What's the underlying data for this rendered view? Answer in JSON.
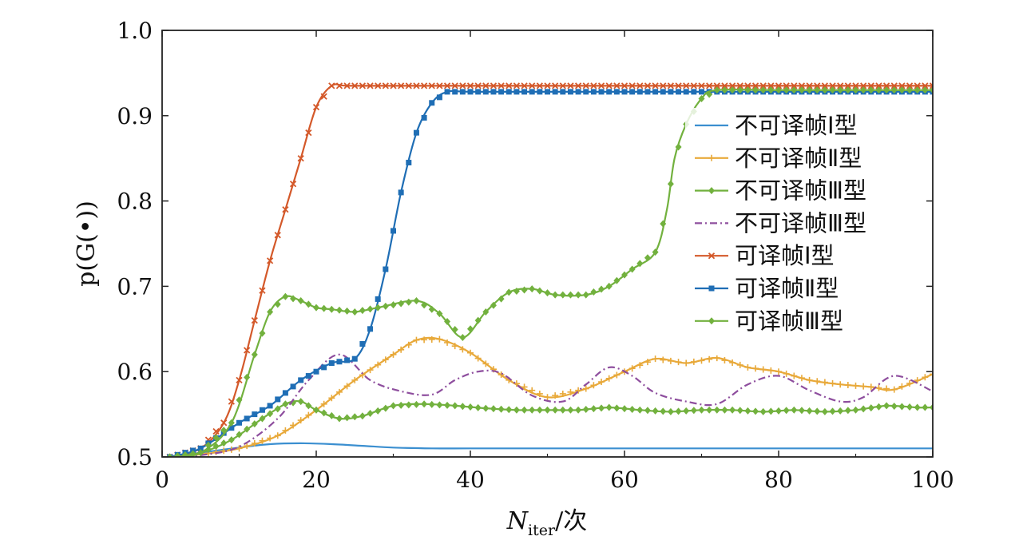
{
  "chart_data": {
    "type": "line",
    "xlabel_main": "N",
    "xlabel_sub": "iter",
    "xlabel_suffix": "/次",
    "ylabel": "p(G(•))",
    "xlim": [
      0,
      100
    ],
    "ylim": [
      0.5,
      1.0
    ],
    "xticks": [
      0,
      20,
      40,
      60,
      80,
      100
    ],
    "yticks": [
      0.5,
      0.6,
      0.7,
      0.8,
      0.9,
      1.0
    ],
    "ytick_labels": [
      "0.5",
      "0.6",
      "0.7",
      "0.8",
      "0.9",
      "1.0"
    ],
    "grid": false,
    "legend_position": "right",
    "series": [
      {
        "name": "不可译帧Ⅰ型",
        "color": "#3b8fd0",
        "marker": "none",
        "dash": "solid",
        "x": [
          1,
          5,
          10,
          14,
          18,
          22,
          26,
          30,
          35,
          40,
          50,
          60,
          70,
          80,
          90,
          100
        ],
        "y": [
          0.5,
          0.505,
          0.511,
          0.515,
          0.516,
          0.515,
          0.513,
          0.511,
          0.51,
          0.51,
          0.51,
          0.51,
          0.51,
          0.51,
          0.51,
          0.51
        ]
      },
      {
        "name": "不可译帧Ⅱ型",
        "color": "#e8a93a",
        "marker": "plus",
        "dash": "solid",
        "x": [
          1,
          5,
          10,
          15,
          20,
          25,
          30,
          33,
          36,
          40,
          45,
          50,
          55,
          60,
          64,
          68,
          72,
          76,
          80,
          84,
          88,
          92,
          95,
          100
        ],
        "y": [
          0.5,
          0.503,
          0.51,
          0.525,
          0.555,
          0.59,
          0.62,
          0.637,
          0.638,
          0.622,
          0.59,
          0.57,
          0.58,
          0.6,
          0.615,
          0.61,
          0.616,
          0.605,
          0.6,
          0.59,
          0.585,
          0.582,
          0.579,
          0.597
        ]
      },
      {
        "name": "不可译帧Ⅲ型",
        "color": "#72b13e",
        "marker": "diamond",
        "dash": "solid",
        "x": [
          1,
          5,
          9,
          13,
          16,
          18,
          20,
          23,
          26,
          30,
          34,
          38,
          42,
          46,
          50,
          54,
          58,
          62,
          66,
          70,
          74,
          78,
          82,
          86,
          90,
          94,
          98,
          100
        ],
        "y": [
          0.5,
          0.505,
          0.52,
          0.545,
          0.562,
          0.565,
          0.555,
          0.545,
          0.548,
          0.56,
          0.562,
          0.56,
          0.557,
          0.555,
          0.555,
          0.555,
          0.558,
          0.555,
          0.553,
          0.555,
          0.555,
          0.553,
          0.555,
          0.553,
          0.555,
          0.56,
          0.558,
          0.558
        ]
      },
      {
        "name": "不可译帧Ⅲ型",
        "color": "#8e4e9e",
        "marker": "none",
        "dash": "dashdot",
        "x": [
          1,
          5,
          10,
          15,
          19,
          23,
          27,
          31,
          35,
          38,
          41,
          44,
          48,
          52,
          55,
          58,
          61,
          64,
          68,
          72,
          76,
          80,
          84,
          88,
          91,
          95,
          100
        ],
        "y": [
          0.5,
          0.502,
          0.512,
          0.545,
          0.59,
          0.62,
          0.59,
          0.577,
          0.573,
          0.59,
          0.6,
          0.598,
          0.572,
          0.565,
          0.585,
          0.605,
          0.595,
          0.575,
          0.565,
          0.562,
          0.585,
          0.595,
          0.578,
          0.565,
          0.57,
          0.595,
          0.577
        ]
      },
      {
        "name": "可译帧Ⅰ型",
        "color": "#d4592a",
        "marker": "x",
        "dash": "solid",
        "x": [
          1,
          5,
          8,
          10,
          12,
          14,
          16,
          18,
          20,
          22,
          24,
          30,
          40,
          60,
          80,
          100
        ],
        "y": [
          0.5,
          0.51,
          0.54,
          0.59,
          0.66,
          0.73,
          0.79,
          0.85,
          0.91,
          0.935,
          0.935,
          0.935,
          0.935,
          0.935,
          0.935,
          0.935
        ]
      },
      {
        "name": "可译帧Ⅱ型",
        "color": "#1f6eb5",
        "marker": "square",
        "dash": "solid",
        "x": [
          1,
          5,
          10,
          14,
          18,
          22,
          25,
          27,
          29,
          31,
          33,
          35,
          37,
          40,
          50,
          60,
          80,
          100
        ],
        "y": [
          0.5,
          0.51,
          0.54,
          0.56,
          0.59,
          0.61,
          0.615,
          0.65,
          0.72,
          0.81,
          0.88,
          0.915,
          0.928,
          0.928,
          0.928,
          0.928,
          0.928,
          0.928
        ]
      },
      {
        "name": "可译帧Ⅲ型",
        "color": "#72b13e",
        "marker": "diamond",
        "dash": "solid",
        "x": [
          1,
          5,
          9,
          12,
          14,
          16,
          18,
          20,
          22,
          25,
          28,
          33,
          36,
          39,
          42,
          45,
          48,
          51,
          55,
          58,
          61,
          64,
          65.5,
          66.5,
          68,
          70,
          72,
          80,
          90,
          100
        ],
        "y": [
          0.5,
          0.505,
          0.54,
          0.62,
          0.67,
          0.688,
          0.683,
          0.675,
          0.673,
          0.67,
          0.675,
          0.683,
          0.668,
          0.64,
          0.67,
          0.693,
          0.697,
          0.69,
          0.69,
          0.7,
          0.72,
          0.74,
          0.79,
          0.85,
          0.89,
          0.92,
          0.93,
          0.93,
          0.93,
          0.93
        ]
      }
    ]
  }
}
